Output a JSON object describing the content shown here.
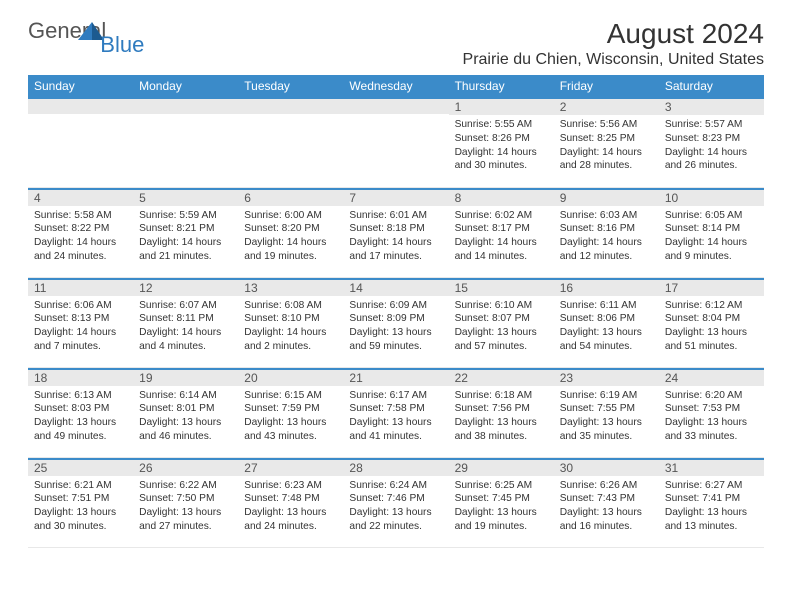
{
  "brand": {
    "general": "General",
    "blue": "Blue"
  },
  "title": "August 2024",
  "location": "Prairie du Chien, Wisconsin, United States",
  "colors": {
    "header_bg": "#3b8bc9",
    "daynum_bg": "#e9e9e9",
    "text": "#333333",
    "accent": "#2f7bbf"
  },
  "weekdays": [
    "Sunday",
    "Monday",
    "Tuesday",
    "Wednesday",
    "Thursday",
    "Friday",
    "Saturday"
  ],
  "weeks": [
    [
      null,
      null,
      null,
      null,
      {
        "n": "1",
        "sr": "Sunrise: 5:55 AM",
        "ss": "Sunset: 8:26 PM",
        "dl": "Daylight: 14 hours and 30 minutes."
      },
      {
        "n": "2",
        "sr": "Sunrise: 5:56 AM",
        "ss": "Sunset: 8:25 PM",
        "dl": "Daylight: 14 hours and 28 minutes."
      },
      {
        "n": "3",
        "sr": "Sunrise: 5:57 AM",
        "ss": "Sunset: 8:23 PM",
        "dl": "Daylight: 14 hours and 26 minutes."
      }
    ],
    [
      {
        "n": "4",
        "sr": "Sunrise: 5:58 AM",
        "ss": "Sunset: 8:22 PM",
        "dl": "Daylight: 14 hours and 24 minutes."
      },
      {
        "n": "5",
        "sr": "Sunrise: 5:59 AM",
        "ss": "Sunset: 8:21 PM",
        "dl": "Daylight: 14 hours and 21 minutes."
      },
      {
        "n": "6",
        "sr": "Sunrise: 6:00 AM",
        "ss": "Sunset: 8:20 PM",
        "dl": "Daylight: 14 hours and 19 minutes."
      },
      {
        "n": "7",
        "sr": "Sunrise: 6:01 AM",
        "ss": "Sunset: 8:18 PM",
        "dl": "Daylight: 14 hours and 17 minutes."
      },
      {
        "n": "8",
        "sr": "Sunrise: 6:02 AM",
        "ss": "Sunset: 8:17 PM",
        "dl": "Daylight: 14 hours and 14 minutes."
      },
      {
        "n": "9",
        "sr": "Sunrise: 6:03 AM",
        "ss": "Sunset: 8:16 PM",
        "dl": "Daylight: 14 hours and 12 minutes."
      },
      {
        "n": "10",
        "sr": "Sunrise: 6:05 AM",
        "ss": "Sunset: 8:14 PM",
        "dl": "Daylight: 14 hours and 9 minutes."
      }
    ],
    [
      {
        "n": "11",
        "sr": "Sunrise: 6:06 AM",
        "ss": "Sunset: 8:13 PM",
        "dl": "Daylight: 14 hours and 7 minutes."
      },
      {
        "n": "12",
        "sr": "Sunrise: 6:07 AM",
        "ss": "Sunset: 8:11 PM",
        "dl": "Daylight: 14 hours and 4 minutes."
      },
      {
        "n": "13",
        "sr": "Sunrise: 6:08 AM",
        "ss": "Sunset: 8:10 PM",
        "dl": "Daylight: 14 hours and 2 minutes."
      },
      {
        "n": "14",
        "sr": "Sunrise: 6:09 AM",
        "ss": "Sunset: 8:09 PM",
        "dl": "Daylight: 13 hours and 59 minutes."
      },
      {
        "n": "15",
        "sr": "Sunrise: 6:10 AM",
        "ss": "Sunset: 8:07 PM",
        "dl": "Daylight: 13 hours and 57 minutes."
      },
      {
        "n": "16",
        "sr": "Sunrise: 6:11 AM",
        "ss": "Sunset: 8:06 PM",
        "dl": "Daylight: 13 hours and 54 minutes."
      },
      {
        "n": "17",
        "sr": "Sunrise: 6:12 AM",
        "ss": "Sunset: 8:04 PM",
        "dl": "Daylight: 13 hours and 51 minutes."
      }
    ],
    [
      {
        "n": "18",
        "sr": "Sunrise: 6:13 AM",
        "ss": "Sunset: 8:03 PM",
        "dl": "Daylight: 13 hours and 49 minutes."
      },
      {
        "n": "19",
        "sr": "Sunrise: 6:14 AM",
        "ss": "Sunset: 8:01 PM",
        "dl": "Daylight: 13 hours and 46 minutes."
      },
      {
        "n": "20",
        "sr": "Sunrise: 6:15 AM",
        "ss": "Sunset: 7:59 PM",
        "dl": "Daylight: 13 hours and 43 minutes."
      },
      {
        "n": "21",
        "sr": "Sunrise: 6:17 AM",
        "ss": "Sunset: 7:58 PM",
        "dl": "Daylight: 13 hours and 41 minutes."
      },
      {
        "n": "22",
        "sr": "Sunrise: 6:18 AM",
        "ss": "Sunset: 7:56 PM",
        "dl": "Daylight: 13 hours and 38 minutes."
      },
      {
        "n": "23",
        "sr": "Sunrise: 6:19 AM",
        "ss": "Sunset: 7:55 PM",
        "dl": "Daylight: 13 hours and 35 minutes."
      },
      {
        "n": "24",
        "sr": "Sunrise: 6:20 AM",
        "ss": "Sunset: 7:53 PM",
        "dl": "Daylight: 13 hours and 33 minutes."
      }
    ],
    [
      {
        "n": "25",
        "sr": "Sunrise: 6:21 AM",
        "ss": "Sunset: 7:51 PM",
        "dl": "Daylight: 13 hours and 30 minutes."
      },
      {
        "n": "26",
        "sr": "Sunrise: 6:22 AM",
        "ss": "Sunset: 7:50 PM",
        "dl": "Daylight: 13 hours and 27 minutes."
      },
      {
        "n": "27",
        "sr": "Sunrise: 6:23 AM",
        "ss": "Sunset: 7:48 PM",
        "dl": "Daylight: 13 hours and 24 minutes."
      },
      {
        "n": "28",
        "sr": "Sunrise: 6:24 AM",
        "ss": "Sunset: 7:46 PM",
        "dl": "Daylight: 13 hours and 22 minutes."
      },
      {
        "n": "29",
        "sr": "Sunrise: 6:25 AM",
        "ss": "Sunset: 7:45 PM",
        "dl": "Daylight: 13 hours and 19 minutes."
      },
      {
        "n": "30",
        "sr": "Sunrise: 6:26 AM",
        "ss": "Sunset: 7:43 PM",
        "dl": "Daylight: 13 hours and 16 minutes."
      },
      {
        "n": "31",
        "sr": "Sunrise: 6:27 AM",
        "ss": "Sunset: 7:41 PM",
        "dl": "Daylight: 13 hours and 13 minutes."
      }
    ]
  ]
}
